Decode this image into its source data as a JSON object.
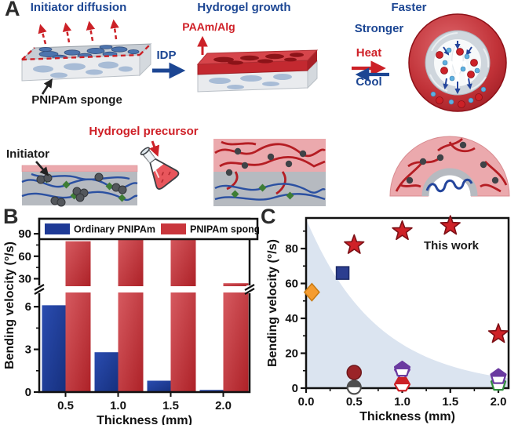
{
  "panels": {
    "a": "A",
    "b": "B",
    "c": "C"
  },
  "panel_a": {
    "labels": {
      "initiator_diffusion": "Initiator diffusion",
      "hydrogel_growth": "Hydrogel growth",
      "paam_alg": "PAAm/Alg",
      "idp": "IDP",
      "faster": "Faster",
      "stronger": "Stronger",
      "heat": "Heat",
      "cool": "Cool",
      "pnipam_sponge": "PNIPAm sponge",
      "initiator": "Initiator",
      "hydrogel_precursor": "Hydrogel precursor"
    }
  },
  "colors": {
    "heading_blue": "#1c4693",
    "heading_red": "#cf2027",
    "bar_blue": "#1e3a96",
    "bar_red": "#c9363c",
    "scatter_shade": "#dbe4f0",
    "star_red": "#cf2127"
  },
  "chart_data": [
    {
      "panel": "B",
      "type": "bar",
      "title": "",
      "xlabel": "Thickness (mm)",
      "ylabel": "Bending velocity (°/s)",
      "categories": [
        "0.5",
        "1.0",
        "1.5",
        "2.0"
      ],
      "series": [
        {
          "name": "Ordinary PNIPAm",
          "color": "#1e3a96",
          "values": [
            6.1,
            2.8,
            0.8,
            0.15
          ]
        },
        {
          "name": "PNIPAm sponge",
          "color": "#c9363c",
          "values": [
            80,
            87,
            92,
            24
          ]
        }
      ],
      "y_axis_break": {
        "lower_range": [
          0,
          7
        ],
        "upper_range": [
          20,
          110
        ],
        "lower_ticks": [
          0,
          3,
          6
        ],
        "lower_minor_ticks": [
          1.5,
          4.5
        ],
        "upper_ticks": [
          30,
          60,
          90
        ],
        "upper_minor_ticks": [
          45,
          75
        ]
      },
      "legend_position": "top"
    },
    {
      "panel": "C",
      "type": "scatter",
      "annotation": "This work",
      "xlabel": "Thickness (mm)",
      "ylabel": "Bending velocity (°/s)",
      "xlim": [
        0,
        2.11
      ],
      "ylim": [
        0,
        97.5
      ],
      "xticks": [
        "0.0",
        "0.5",
        "1.0",
        "1.5",
        "2.0"
      ],
      "yticks": [
        0,
        20,
        40,
        60,
        80
      ],
      "shaded_region": {
        "description": "light-blue exponential decay band under curve",
        "curve": "y = 97*exp(-1.35x)",
        "color": "#dbe4f0"
      },
      "series": [
        {
          "name": "This work",
          "marker": "star",
          "color": "#cf2127",
          "points": [
            [
              0.5,
              82
            ],
            [
              1.0,
              90
            ],
            [
              1.5,
              93
            ],
            [
              2.0,
              31
            ]
          ]
        },
        {
          "name": "reported-diamond",
          "marker": "diamond",
          "color": "#f59c30",
          "points": [
            [
              0.06,
              55
            ]
          ]
        },
        {
          "name": "reported-square",
          "marker": "square",
          "color": "#2c3e90",
          "points": [
            [
              0.38,
              66
            ]
          ]
        },
        {
          "name": "reported-circle",
          "marker": "circle",
          "color": "#9b2428",
          "points": [
            [
              0.5,
              9
            ]
          ]
        },
        {
          "name": "reported-circle-half",
          "marker": "circle-half",
          "color": "#4f4f4f",
          "points": [
            [
              0.5,
              0.5
            ]
          ]
        },
        {
          "name": "reported-triangle",
          "marker": "triangle-down-half",
          "color": "#7a3fae",
          "points": [
            [
              1.0,
              7.5
            ]
          ]
        },
        {
          "name": "reported-hexagon",
          "marker": "hexagon-half",
          "color": "#cc2127",
          "points": [
            [
              1.0,
              2.2
            ]
          ]
        },
        {
          "name": "reported-pentagon-open",
          "marker": "pentagon-open",
          "color": "#2f8b3c",
          "points": [
            [
              2.0,
              2.5
            ]
          ]
        },
        {
          "name": "reported-pentagon",
          "marker": "pentagon-half",
          "color": "#6a3aa0",
          "points": [
            [
              1.0,
              10.8
            ],
            [
              2.0,
              6.5
            ]
          ]
        }
      ]
    }
  ]
}
